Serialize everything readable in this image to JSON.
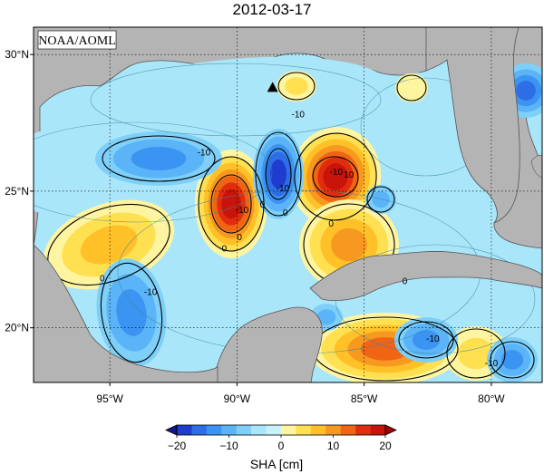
{
  "title": "2012-03-17",
  "credit": "NOAA/AOML",
  "lat_ticks": [
    {
      "value": 30,
      "label": "30°N"
    },
    {
      "value": 25,
      "label": "25°N"
    },
    {
      "value": 20,
      "label": "20°N"
    }
  ],
  "lon_ticks": [
    {
      "value": -95,
      "label": "95°W"
    },
    {
      "value": -90,
      "label": "90°W"
    },
    {
      "value": -85,
      "label": "85°W"
    },
    {
      "value": -80,
      "label": "80°W"
    }
  ],
  "extent": {
    "lon": [
      -98,
      -78
    ],
    "lat": [
      18,
      31
    ]
  },
  "colorbar": {
    "label": "SHA [cm]",
    "ticks": [
      "−20",
      "−10",
      "0",
      "10",
      "20"
    ],
    "tick_values": [
      -20,
      -10,
      0,
      10,
      20
    ],
    "range": [
      -20,
      20
    ],
    "colors": [
      "#1e3ccd",
      "#2d6ee6",
      "#3c94f2",
      "#5ab4f7",
      "#7fd0f9",
      "#aae6fa",
      "#c8f2fa",
      "#fff5a0",
      "#ffe050",
      "#ffc028",
      "#f79820",
      "#f06414",
      "#e02d0f",
      "#c8140a"
    ],
    "over_color": "#a00000",
    "under_color": "#14148c"
  },
  "contour_labels": [
    {
      "text": "-10",
      "lon": -87.6,
      "lat": 27.7
    },
    {
      "text": "-10",
      "lon": -91.3,
      "lat": 26.3
    },
    {
      "text": "-10",
      "lon": -93.4,
      "lat": 21.2
    },
    {
      "text": "-10",
      "lon": -89.8,
      "lat": 24.2
    },
    {
      "text": "-10",
      "lon": -88.2,
      "lat": 25.0
    },
    {
      "text": "-10",
      "lon": -82.3,
      "lat": 19.5
    },
    {
      "text": "-10",
      "lon": -80.0,
      "lat": 18.6
    },
    {
      "text": "-10",
      "lon": -86.1,
      "lat": 25.6
    },
    {
      "text": "10",
      "lon": -85.6,
      "lat": 25.5
    },
    {
      "text": "0",
      "lon": -95.3,
      "lat": 21.7
    },
    {
      "text": "0",
      "lon": -90.5,
      "lat": 22.8
    },
    {
      "text": "0",
      "lon": -88.1,
      "lat": 24.1
    },
    {
      "text": "0",
      "lon": -89.0,
      "lat": 24.4
    },
    {
      "text": "0",
      "lon": -89.9,
      "lat": 23.2
    },
    {
      "text": "0",
      "lon": -83.4,
      "lat": 21.6
    },
    {
      "text": "0",
      "lon": -86.3,
      "lat": 23.7
    }
  ],
  "marker": {
    "lon": -88.6,
    "lat": 28.8
  }
}
